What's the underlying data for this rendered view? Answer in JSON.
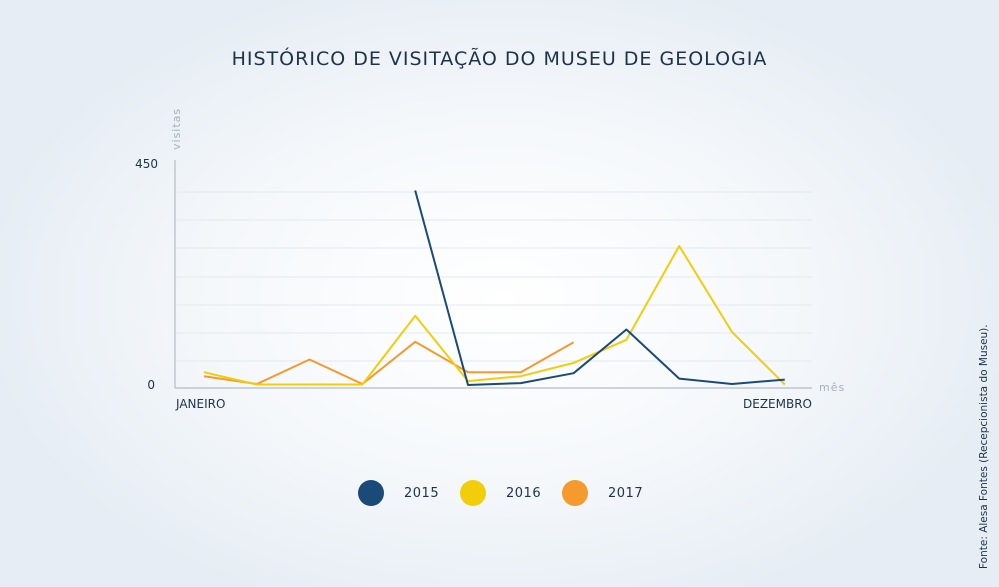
{
  "title": "HISTÓRICO DE VISITAÇÃO DO MUSEU DE GEOLOGIA",
  "source": "Fonte: Alesa Fontes (Recepcionista do Museu).",
  "chart_data": {
    "type": "line",
    "title": "HISTÓRICO DE VISITAÇÃO DO MUSEU DE GEOLOGIA",
    "ylabel": "visitas",
    "xlabel": "mês",
    "ylim": [
      0,
      450
    ],
    "y_ticks": [
      "0",
      "450"
    ],
    "x_tick_labels": {
      "first": "JANEIRO",
      "last": "DEZEMBRO"
    },
    "x": [
      1,
      2,
      3,
      4,
      5,
      6,
      7,
      8,
      9,
      10,
      11,
      12
    ],
    "grid": true,
    "legend_position": "bottom",
    "series": [
      {
        "name": "2015",
        "color": "#1a4a78",
        "values": [
          null,
          null,
          null,
          null,
          398,
          2,
          6,
          26,
          115,
          15,
          4,
          13
        ]
      },
      {
        "name": "2016",
        "color": "#f2cd0a",
        "values": [
          28,
          3,
          3,
          3,
          143,
          10,
          20,
          47,
          94,
          285,
          110,
          3
        ]
      },
      {
        "name": "2017",
        "color": "#f49a2e",
        "values": [
          20,
          4,
          54,
          4,
          90,
          28,
          28,
          89,
          null,
          null,
          null,
          null
        ]
      }
    ]
  }
}
